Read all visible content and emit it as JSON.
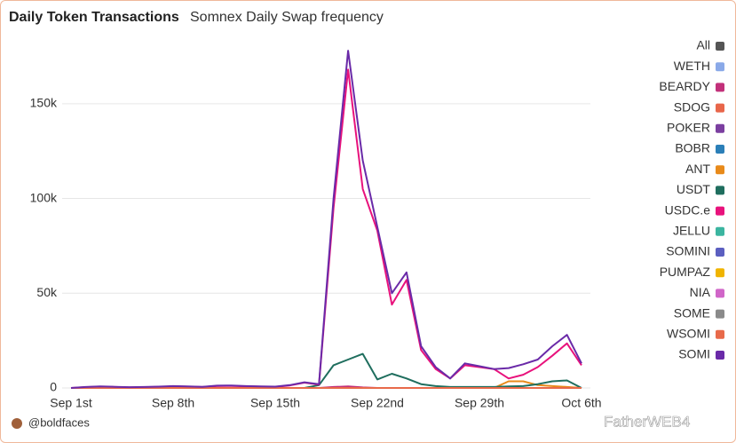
{
  "chart_data": {
    "type": "line",
    "title": "Daily Token Transactions",
    "subtitle": "Somnex Daily Swap frequency",
    "credit": "@boldfaces",
    "watermark": "FatherWEB4",
    "categories": [
      "Sep 1st",
      null,
      null,
      null,
      null,
      null,
      null,
      "Sep 8th",
      null,
      null,
      null,
      null,
      null,
      null,
      "Sep 15th",
      null,
      null,
      null,
      null,
      null,
      null,
      "Sep 22nd",
      null,
      null,
      null,
      null,
      null,
      null,
      "Sep 29th",
      null,
      null,
      null,
      null,
      null,
      null,
      "Oct 6th"
    ],
    "ylim": [
      0,
      186000
    ],
    "yticks": [
      0,
      {
        "value": 50000,
        "label": "50k"
      },
      {
        "value": 100000,
        "label": "100k"
      },
      {
        "value": 150000,
        "label": "150k"
      }
    ],
    "grid": true,
    "legend": "right",
    "series": [
      {
        "name": "All",
        "color": "#555555",
        "values": [
          0,
          0,
          0,
          0,
          0,
          0,
          0,
          0,
          0,
          0,
          0,
          0,
          0,
          0,
          0,
          0,
          0,
          0,
          0,
          0,
          0,
          0,
          0,
          0,
          0,
          0,
          0,
          0,
          0,
          0,
          0,
          0,
          0,
          0,
          0,
          0
        ]
      },
      {
        "name": "WETH",
        "color": "#8aa9e8",
        "values": [
          0,
          0,
          0,
          0,
          0,
          0,
          0,
          0,
          0,
          0,
          0,
          0,
          0,
          0,
          0,
          0,
          0,
          0,
          0,
          0,
          0,
          0,
          0,
          0,
          0,
          0,
          0,
          0,
          0,
          0,
          0,
          0,
          0,
          0,
          0,
          0
        ]
      },
      {
        "name": "BEARDY",
        "color": "#c2307a",
        "values": [
          0,
          0,
          0,
          0,
          0,
          0,
          0,
          0,
          0,
          0,
          0,
          0,
          0,
          0,
          0,
          0,
          0,
          0,
          500,
          800,
          300,
          0,
          0,
          0,
          0,
          0,
          0,
          0,
          0,
          0,
          0,
          0,
          0,
          0,
          0,
          0
        ]
      },
      {
        "name": "SDOG",
        "color": "#e8664a",
        "values": [
          0,
          0,
          0,
          0,
          0,
          0,
          0,
          0,
          0,
          0,
          0,
          0,
          0,
          0,
          0,
          0,
          0,
          0,
          0,
          0,
          0,
          0,
          0,
          0,
          0,
          0,
          0,
          0,
          0,
          0,
          0,
          0,
          0,
          0,
          0,
          0
        ]
      },
      {
        "name": "POKER",
        "color": "#7b3fa0",
        "values": [
          0,
          0,
          0,
          0,
          0,
          0,
          0,
          0,
          0,
          0,
          0,
          0,
          0,
          0,
          0,
          0,
          0,
          0,
          0,
          0,
          0,
          0,
          0,
          0,
          0,
          0,
          0,
          0,
          0,
          0,
          0,
          0,
          0,
          0,
          0,
          0
        ]
      },
      {
        "name": "BOBR",
        "color": "#2b7fb8",
        "values": [
          0,
          0,
          0,
          0,
          0,
          0,
          0,
          0,
          0,
          0,
          0,
          0,
          0,
          0,
          0,
          0,
          0,
          0,
          0,
          0,
          0,
          0,
          0,
          0,
          0,
          0,
          0,
          0,
          0,
          0,
          0,
          0,
          0,
          0,
          0,
          0
        ]
      },
      {
        "name": "ANT",
        "color": "#e88a1a",
        "values": [
          0,
          0,
          0,
          0,
          0,
          0,
          0,
          0,
          0,
          0,
          0,
          0,
          0,
          0,
          0,
          0,
          0,
          0,
          0,
          0,
          0,
          0,
          0,
          0,
          0,
          0,
          0,
          0,
          0,
          0,
          3500,
          3500,
          1500,
          1000,
          500,
          0
        ]
      },
      {
        "name": "USDT",
        "color": "#1f6e5e",
        "values": [
          0,
          0,
          0,
          0,
          0,
          0,
          0,
          0,
          0,
          0,
          0,
          0,
          0,
          0,
          0,
          0,
          0,
          1500,
          12000,
          15000,
          18000,
          4500,
          7500,
          5000,
          2000,
          1000,
          500,
          500,
          500,
          500,
          800,
          1000,
          2000,
          3500,
          4000,
          0
        ]
      },
      {
        "name": "USDC.e",
        "color": "#e8127c",
        "values": [
          0,
          400,
          700,
          500,
          300,
          400,
          600,
          800,
          700,
          500,
          1000,
          1100,
          900,
          700,
          600,
          1300,
          2800,
          1800,
          95000,
          168000,
          105000,
          83000,
          44000,
          57000,
          20000,
          10000,
          5000,
          12000,
          11000,
          10000,
          5000,
          7000,
          11000,
          17000,
          23500,
          12000
        ]
      },
      {
        "name": "JELLU",
        "color": "#3bb5a0",
        "values": [
          0,
          0,
          0,
          0,
          0,
          0,
          0,
          0,
          0,
          0,
          0,
          0,
          0,
          0,
          0,
          0,
          0,
          0,
          0,
          0,
          0,
          0,
          0,
          0,
          0,
          0,
          0,
          0,
          0,
          0,
          0,
          0,
          0,
          0,
          0,
          0
        ]
      },
      {
        "name": "SOMINI",
        "color": "#5b5fc0",
        "values": [
          0,
          0,
          0,
          0,
          0,
          0,
          0,
          0,
          0,
          0,
          0,
          0,
          0,
          0,
          0,
          0,
          0,
          0,
          0,
          0,
          0,
          0,
          0,
          0,
          0,
          0,
          0,
          0,
          0,
          0,
          0,
          0,
          0,
          0,
          0,
          0
        ]
      },
      {
        "name": "PUMPAZ",
        "color": "#f0b400",
        "values": [
          0,
          0,
          0,
          0,
          0,
          0,
          0,
          0,
          0,
          0,
          0,
          0,
          0,
          0,
          0,
          0,
          0,
          0,
          0,
          0,
          0,
          0,
          0,
          0,
          0,
          0,
          0,
          0,
          0,
          0,
          0,
          0,
          0,
          0,
          0,
          0
        ]
      },
      {
        "name": "NIA",
        "color": "#d066c8",
        "values": [
          0,
          0,
          0,
          0,
          0,
          0,
          0,
          0,
          0,
          0,
          0,
          0,
          0,
          0,
          0,
          0,
          0,
          0,
          0,
          0,
          0,
          0,
          0,
          0,
          0,
          0,
          0,
          0,
          0,
          0,
          0,
          0,
          0,
          0,
          0,
          0
        ]
      },
      {
        "name": "SOME",
        "color": "#8a8a8a",
        "values": [
          0,
          0,
          0,
          0,
          0,
          0,
          0,
          0,
          0,
          0,
          0,
          0,
          0,
          0,
          0,
          0,
          0,
          0,
          0,
          0,
          0,
          0,
          0,
          0,
          0,
          0,
          0,
          0,
          0,
          0,
          0,
          0,
          0,
          0,
          0,
          0
        ]
      },
      {
        "name": "WSOMI",
        "color": "#e86a4a",
        "values": [
          0,
          0,
          0,
          0,
          0,
          0,
          0,
          0,
          0,
          0,
          0,
          0,
          0,
          0,
          0,
          0,
          0,
          0,
          0,
          0,
          0,
          0,
          0,
          0,
          0,
          0,
          0,
          0,
          0,
          0,
          0,
          0,
          0,
          0,
          0,
          0
        ]
      },
      {
        "name": "SOMI",
        "color": "#6a2aa8",
        "values": [
          0,
          500,
          800,
          600,
          400,
          500,
          700,
          1000,
          800,
          600,
          1200,
          1300,
          1000,
          800,
          700,
          1500,
          3000,
          2000,
          100000,
          178000,
          120000,
          85000,
          50000,
          61000,
          22000,
          11000,
          5000,
          13000,
          11500,
          10000,
          10500,
          12500,
          15000,
          22000,
          28000,
          13000
        ]
      }
    ]
  }
}
